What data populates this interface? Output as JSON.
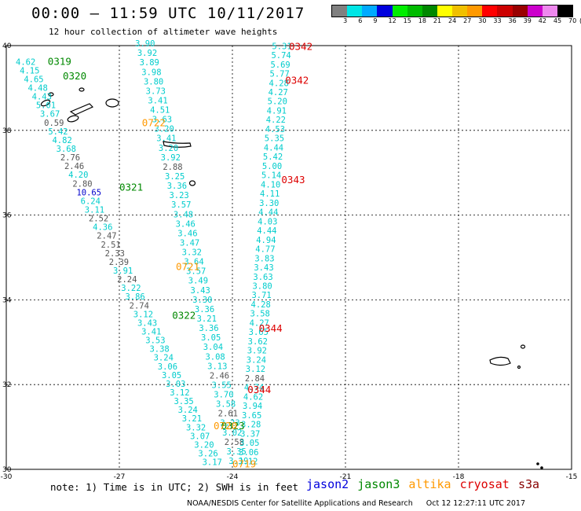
{
  "header": {
    "title": "00:00 – 11:59 UTC 10/11/2017",
    "subtitle": "12 hour collection of altimeter wave heights"
  },
  "legend": {
    "unit_label": "(ft)",
    "bins": [
      {
        "color": "#808080",
        "label": "3"
      },
      {
        "color": "#00e6e6",
        "label": "6"
      },
      {
        "color": "#00aaff",
        "label": "9"
      },
      {
        "color": "#0000dd",
        "label": "12"
      },
      {
        "color": "#00ee00",
        "label": "15"
      },
      {
        "color": "#00bb00",
        "label": "18"
      },
      {
        "color": "#008800",
        "label": "21"
      },
      {
        "color": "#ffff00",
        "label": "24"
      },
      {
        "color": "#f0c000",
        "label": "27"
      },
      {
        "color": "#ff9900",
        "label": "30"
      },
      {
        "color": "#ff0000",
        "label": "33"
      },
      {
        "color": "#cc0000",
        "label": "36"
      },
      {
        "color": "#990000",
        "label": "39"
      },
      {
        "color": "#cc00cc",
        "label": "42"
      },
      {
        "color": "#ee88ee",
        "label": "45"
      },
      {
        "color": "#000000",
        "label": "70"
      }
    ]
  },
  "map": {
    "lon_range": [
      -30,
      -15
    ],
    "lat_range": [
      30,
      40
    ],
    "lon_ticks": [
      {
        "lon": -30,
        "label": "-30"
      },
      {
        "lon": -27,
        "label": "-27"
      },
      {
        "lon": -24,
        "label": "-24"
      },
      {
        "lon": -21,
        "label": "-21"
      },
      {
        "lon": -18,
        "label": "-18"
      },
      {
        "lon": -15,
        "label": "-15"
      }
    ],
    "lat_ticks": [
      {
        "lat": 40,
        "label": "40"
      },
      {
        "lat": 38,
        "label": "38"
      },
      {
        "lat": 36,
        "label": "36"
      },
      {
        "lat": 34,
        "label": "34"
      },
      {
        "lat": 32,
        "label": "32"
      },
      {
        "lat": 30,
        "label": "30"
      }
    ],
    "colors": {
      "v3": "#00cccc",
      "v0": "#555555",
      "v9": "#0000cc",
      "jason3": "#008800",
      "altika": "#ff9900",
      "cryosat": "#dd0000"
    },
    "time_labels": [
      {
        "text": "0319",
        "lon": -28.9,
        "lat": 39.55,
        "sat": "jason3"
      },
      {
        "text": "0320",
        "lon": -28.5,
        "lat": 39.2,
        "sat": "jason3"
      },
      {
        "text": "0722",
        "lon": -26.4,
        "lat": 38.1,
        "sat": "altika"
      },
      {
        "text": "0321",
        "lon": -27.0,
        "lat": 36.58,
        "sat": "jason3"
      },
      {
        "text": "0721",
        "lon": -25.5,
        "lat": 34.7,
        "sat": "altika"
      },
      {
        "text": "0322",
        "lon": -25.6,
        "lat": 33.55,
        "sat": "jason3"
      },
      {
        "text": "0342",
        "lon": -22.5,
        "lat": 39.9,
        "sat": "cryosat"
      },
      {
        "text": "0342",
        "lon": -22.6,
        "lat": 39.1,
        "sat": "cryosat"
      },
      {
        "text": "0343",
        "lon": -22.7,
        "lat": 36.75,
        "sat": "cryosat"
      },
      {
        "text": "0344",
        "lon": -23.3,
        "lat": 33.25,
        "sat": "cryosat"
      },
      {
        "text": "0344",
        "lon": -23.6,
        "lat": 31.8,
        "sat": "cryosat"
      },
      {
        "text": "0323",
        "lon": -24.3,
        "lat": 30.95,
        "sat": "jason3"
      },
      {
        "text": "0720",
        "lon": -24.5,
        "lat": 30.95,
        "sat": "altika"
      },
      {
        "text": "0719",
        "lon": -24.0,
        "lat": 30.05,
        "sat": "altika"
      }
    ],
    "tracks": [
      {
        "name": "altika-track",
        "lon_start": -26.58,
        "lat_start": 39.98,
        "lon_end": -24.1,
        "lat_end": 30.13,
        "values": [
          {
            "v": "3.90",
            "c": "v3"
          },
          {
            "v": "3.92",
            "c": "v3"
          },
          {
            "v": "3.89",
            "c": "v3"
          },
          {
            "v": "3.98",
            "c": "v3"
          },
          {
            "v": "3.80",
            "c": "v3"
          },
          {
            "v": "3.73",
            "c": "v3"
          },
          {
            "v": "3.41",
            "c": "v3"
          },
          {
            "v": "4.51",
            "c": "v3"
          },
          {
            "v": "3.63",
            "c": "v3"
          },
          {
            "v": "3.20",
            "c": "v3"
          },
          {
            "v": "3.41",
            "c": "v3"
          },
          {
            "v": "3.20",
            "c": "v3"
          },
          {
            "v": "3.92",
            "c": "v3"
          },
          {
            "v": "2.88",
            "c": "v0"
          },
          {
            "v": "3.25",
            "c": "v3"
          },
          {
            "v": "3.36",
            "c": "v3"
          },
          {
            "v": "3.23",
            "c": "v3"
          },
          {
            "v": "3.57",
            "c": "v3"
          },
          {
            "v": "3.48",
            "c": "v3"
          },
          {
            "v": "3.46",
            "c": "v3"
          },
          {
            "v": "3.46",
            "c": "v3"
          },
          {
            "v": "3.47",
            "c": "v3"
          },
          {
            "v": "3.32",
            "c": "v3"
          },
          {
            "v": "3.64",
            "c": "v3"
          },
          {
            "v": "3.57",
            "c": "v3"
          },
          {
            "v": "3.49",
            "c": "v3"
          },
          {
            "v": "3.43",
            "c": "v3"
          },
          {
            "v": "3.30",
            "c": "v3"
          },
          {
            "v": "3.36",
            "c": "v3"
          },
          {
            "v": "3.21",
            "c": "v3"
          },
          {
            "v": "3.36",
            "c": "v3"
          },
          {
            "v": "3.05",
            "c": "v3"
          },
          {
            "v": "3.04",
            "c": "v3"
          },
          {
            "v": "3.08",
            "c": "v3"
          },
          {
            "v": "3.13",
            "c": "v3"
          },
          {
            "v": "2.46",
            "c": "v0"
          },
          {
            "v": "3.55",
            "c": "v3"
          },
          {
            "v": "3.70",
            "c": "v3"
          },
          {
            "v": "3.58",
            "c": "v3"
          },
          {
            "v": "2.61",
            "c": "v0"
          },
          {
            "v": "3.23",
            "c": "v3"
          },
          {
            "v": "3.02",
            "c": "v3"
          },
          {
            "v": "2.58",
            "c": "v0"
          },
          {
            "v": "3.35",
            "c": "v3"
          },
          {
            "v": "3.19",
            "c": "v3"
          }
        ]
      },
      {
        "name": "jason3-track",
        "lon_start": -29.75,
        "lat_start": 39.55,
        "lon_end": -24.8,
        "lat_end": 30.1,
        "values": [
          {
            "v": "4.62",
            "c": "v3"
          },
          {
            "v": "4.15",
            "c": "v3"
          },
          {
            "v": "4.65",
            "c": "v3"
          },
          {
            "v": "4.48",
            "c": "v3"
          },
          {
            "v": "4.43",
            "c": "v3"
          },
          {
            "v": "5.01",
            "c": "v3"
          },
          {
            "v": "3.67",
            "c": "v3"
          },
          {
            "v": "0.59",
            "c": "v0"
          },
          {
            "v": "5.42",
            "c": "v3"
          },
          {
            "v": "4.82",
            "c": "v3"
          },
          {
            "v": "3.68",
            "c": "v3"
          },
          {
            "v": "2.76",
            "c": "v0"
          },
          {
            "v": "2.46",
            "c": "v0"
          },
          {
            "v": "4.20",
            "c": "v3"
          },
          {
            "v": "2.80",
            "c": "v0"
          },
          {
            "v": "10.65",
            "c": "v9"
          },
          {
            "v": "6.24",
            "c": "v3"
          },
          {
            "v": "3.11",
            "c": "v3"
          },
          {
            "v": "2.52",
            "c": "v0"
          },
          {
            "v": "4.36",
            "c": "v3"
          },
          {
            "v": "2.47",
            "c": "v0"
          },
          {
            "v": "2.51",
            "c": "v0"
          },
          {
            "v": "2.33",
            "c": "v0"
          },
          {
            "v": "2.39",
            "c": "v0"
          },
          {
            "v": "3.91",
            "c": "v3"
          },
          {
            "v": "2.24",
            "c": "v0"
          },
          {
            "v": "3.22",
            "c": "v3"
          },
          {
            "v": "3.86",
            "c": "v3"
          },
          {
            "v": "2.74",
            "c": "v0"
          },
          {
            "v": "3.12",
            "c": "v3"
          },
          {
            "v": "3.43",
            "c": "v3"
          },
          {
            "v": "3.41",
            "c": "v3"
          },
          {
            "v": "3.53",
            "c": "v3"
          },
          {
            "v": "3.38",
            "c": "v3"
          },
          {
            "v": "3.24",
            "c": "v3"
          },
          {
            "v": "3.06",
            "c": "v3"
          },
          {
            "v": "3.05",
            "c": "v3"
          },
          {
            "v": "3.03",
            "c": "v3"
          },
          {
            "v": "3.12",
            "c": "v3"
          },
          {
            "v": "3.35",
            "c": "v3"
          },
          {
            "v": "3.24",
            "c": "v3"
          },
          {
            "v": "3.21",
            "c": "v3"
          },
          {
            "v": "3.32",
            "c": "v3"
          },
          {
            "v": "3.07",
            "c": "v3"
          },
          {
            "v": "3.20",
            "c": "v3"
          },
          {
            "v": "3.26",
            "c": "v3"
          },
          {
            "v": "3.17",
            "c": "v3"
          }
        ]
      },
      {
        "name": "cryosat-track",
        "lon_start": -22.95,
        "lat_start": 39.92,
        "lon_end": -23.85,
        "lat_end": 30.12,
        "values": [
          {
            "v": "5.31",
            "c": "v3"
          },
          {
            "v": "5.74",
            "c": "v3"
          },
          {
            "v": "5.69",
            "c": "v3"
          },
          {
            "v": "5.77",
            "c": "v3"
          },
          {
            "v": "4.28",
            "c": "v3"
          },
          {
            "v": "4.27",
            "c": "v3"
          },
          {
            "v": "5.20",
            "c": "v3"
          },
          {
            "v": "4.91",
            "c": "v3"
          },
          {
            "v": "4.22",
            "c": "v3"
          },
          {
            "v": "4.53",
            "c": "v3"
          },
          {
            "v": "5.35",
            "c": "v3"
          },
          {
            "v": "4.44",
            "c": "v3"
          },
          {
            "v": "5.42",
            "c": "v3"
          },
          {
            "v": "5.00",
            "c": "v3"
          },
          {
            "v": "5.14",
            "c": "v3"
          },
          {
            "v": "4.10",
            "c": "v3"
          },
          {
            "v": "4.11",
            "c": "v3"
          },
          {
            "v": "3.30",
            "c": "v3"
          },
          {
            "v": "4.44",
            "c": "v3"
          },
          {
            "v": "4.03",
            "c": "v3"
          },
          {
            "v": "4.44",
            "c": "v3"
          },
          {
            "v": "4.94",
            "c": "v3"
          },
          {
            "v": "4.77",
            "c": "v3"
          },
          {
            "v": "3.83",
            "c": "v3"
          },
          {
            "v": "3.43",
            "c": "v3"
          },
          {
            "v": "3.63",
            "c": "v3"
          },
          {
            "v": "3.80",
            "c": "v3"
          },
          {
            "v": "3.71",
            "c": "v3"
          },
          {
            "v": "4.28",
            "c": "v3"
          },
          {
            "v": "3.58",
            "c": "v3"
          },
          {
            "v": "4.27",
            "c": "v3"
          },
          {
            "v": "3.65",
            "c": "v3"
          },
          {
            "v": "3.62",
            "c": "v3"
          },
          {
            "v": "3.92",
            "c": "v3"
          },
          {
            "v": "3.24",
            "c": "v3"
          },
          {
            "v": "3.12",
            "c": "v3"
          },
          {
            "v": "2.84",
            "c": "v0"
          },
          {
            "v": "4.74",
            "c": "v3"
          },
          {
            "v": "4.62",
            "c": "v3"
          },
          {
            "v": "3.94",
            "c": "v3"
          },
          {
            "v": "3.65",
            "c": "v3"
          },
          {
            "v": "3.28",
            "c": "v3"
          },
          {
            "v": "3.37",
            "c": "v3"
          },
          {
            "v": "3.05",
            "c": "v3"
          },
          {
            "v": "3.06",
            "c": "v3"
          },
          {
            "v": "3.12",
            "c": "v3"
          }
        ]
      }
    ]
  },
  "note": {
    "text": "note: 1) Time is in UTC; 2) SWH is in feet",
    "satellites": [
      {
        "label": "jason2",
        "color": "#0000dd"
      },
      {
        "label": "jason3",
        "color": "#008800"
      },
      {
        "label": "altika",
        "color": "#ff9900"
      },
      {
        "label": "cryosat",
        "color": "#dd0000"
      },
      {
        "label": "s3a",
        "color": "#880000"
      }
    ]
  },
  "footer": {
    "credit": "NOAA/NESDIS Center for Satellite Applications and Research",
    "timestamp": "Oct 12 12:27:11 UTC 2017"
  }
}
